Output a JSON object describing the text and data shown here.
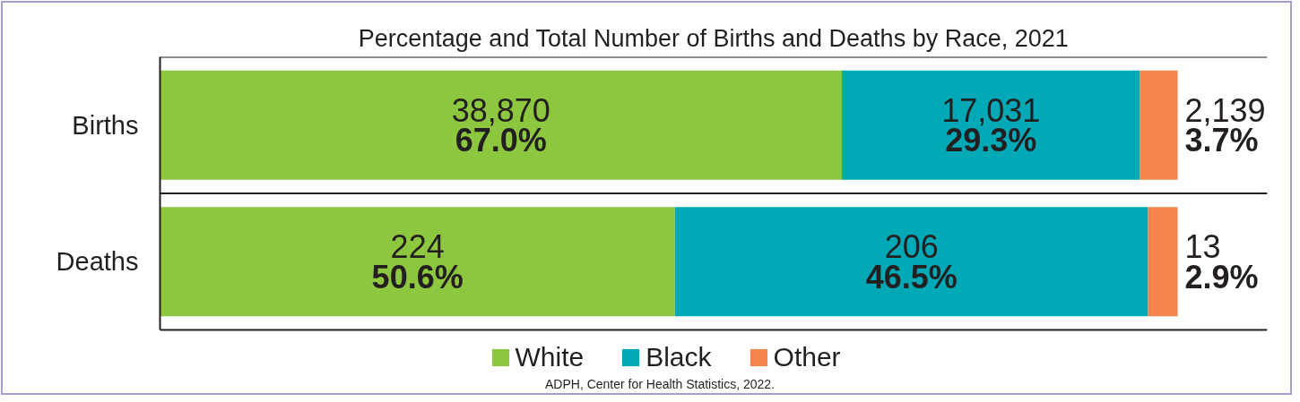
{
  "chart_data": {
    "type": "bar",
    "orientation": "horizontal",
    "stacked": true,
    "title": "Percentage and Total Number of Births and Deaths by Race, 2021",
    "categories": [
      "Births",
      "Deaths"
    ],
    "series": [
      {
        "name": "White",
        "color": "#8dc63f",
        "values": [
          67.0,
          50.6
        ],
        "value_labels": [
          "38,870\n67.0%",
          "224\n50.6%"
        ]
      },
      {
        "name": "Black",
        "color": "#00a9b5",
        "values": [
          29.3,
          46.5
        ],
        "value_labels": [
          "17,031\n29.3%",
          "206\n46.5%"
        ]
      },
      {
        "name": "Other",
        "color": "#f5854d",
        "values": [
          3.7,
          2.9
        ],
        "value_labels": [
          "2,139\n3.7%",
          "13\n2.9%"
        ]
      }
    ],
    "legend": "bottom",
    "annotations": [
      "ADPH, Center for Health Statistics, 2022."
    ]
  }
}
